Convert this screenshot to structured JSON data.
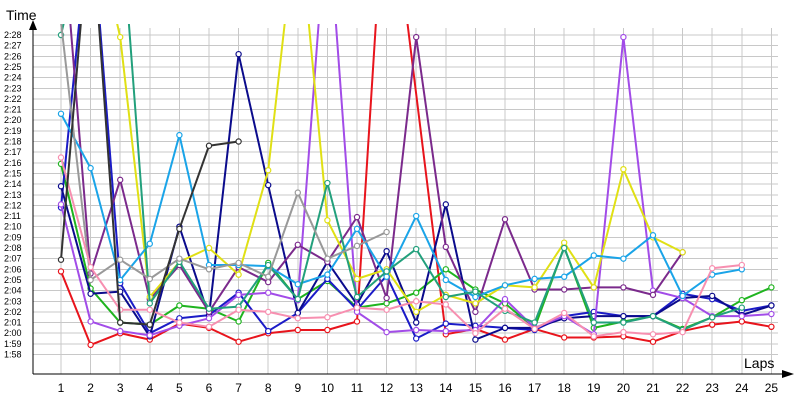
{
  "chart_data": {
    "type": "line",
    "ylabel": "Time",
    "xlabel": "Laps",
    "x": [
      1,
      2,
      3,
      4,
      5,
      6,
      7,
      8,
      9,
      10,
      11,
      12,
      13,
      14,
      15,
      16,
      17,
      18,
      19,
      20,
      21,
      22,
      23,
      24,
      25
    ],
    "ylim": [
      "1:57",
      "2:31"
    ],
    "y_tick_labels": [
      "1:58",
      "1:59",
      "2:00",
      "2:01",
      "2:02",
      "2:03",
      "2:04",
      "2:05",
      "2:06",
      "2:07",
      "2:08",
      "2:09",
      "2:10",
      "2:11",
      "2:12",
      "2:13",
      "2:14",
      "2:15",
      "2:16",
      "2:17",
      "2:18",
      "2:19",
      "2:20",
      "2:21",
      "2:22",
      "2:23",
      "2:24",
      "2:25",
      "2:26",
      "2:27",
      "2:28"
    ],
    "grid": true,
    "series": [
      {
        "color": "#e8141c",
        "values": [
          "2:05.8",
          "1:58.9",
          "2:00.0",
          "1:59.4",
          "2:00.9",
          "2:00.5",
          "1:59.2",
          "2:00.0",
          "2:00.3",
          "2:00.3",
          "2:01.1",
          "2:45",
          null,
          "1:59.9",
          "2:00.4",
          "1:59.4",
          "2:00.4",
          "1:59.6",
          "1:59.6",
          "1:59.7",
          "1:59.2",
          "2:00.2",
          "2:00.8",
          "2:01.1",
          "2:00.6"
        ]
      },
      {
        "color": "#1fb41f",
        "values": [
          "2:15.9",
          "2:04.2",
          "2:01.0",
          "2:00.8",
          "2:02.6",
          "2:02.3",
          "2:01.1",
          "2:06.6",
          "2:03.2",
          "2:04.9",
          "2:02.4",
          "2:02.8",
          "2:03.8",
          "2:06.0",
          "2:04.1",
          "2:02.8",
          "2:00.5",
          "2:08.1",
          "2:00.5",
          "2:01.1",
          "2:01.6",
          "2:00.4",
          "2:01.5",
          "2:03.1",
          "2:04.3"
        ]
      },
      {
        "color": "#1b1bc7",
        "values": [
          "2:11.8",
          "2:40",
          "2:04.7",
          "2:00.0",
          "2:01.4",
          "2:01.7",
          "2:03.8",
          "2:00.2",
          "2:01.9",
          "2:05.1",
          "2:02.2",
          "2:05.4",
          "1:59.5",
          "2:00.9",
          "2:00.7",
          "2:00.5",
          "2:00.3",
          "2:01.6",
          "2:02.0",
          "2:01.6",
          "2:01.6",
          "2:03.7",
          "2:03.2",
          "2:02.1",
          "2:02.6"
        ]
      },
      {
        "color": "#0b0b8c",
        "values": [
          "2:13.8",
          "2:03.7",
          "2:03.9",
          "1:59.7",
          "2:10.0",
          "2:01.6",
          "2:26.2",
          "2:13.9",
          "2:01.9",
          "2:06.7",
          "2:02.7",
          "2:07.7",
          "2:01.0",
          "2:12.1",
          "1:59.4",
          "2:00.5",
          "2:00.5",
          "2:01.4",
          "2:01.6",
          "2:01.6",
          "2:01.6",
          "2:03.3",
          "2:03.5",
          "2:01.7",
          "2:02.6"
        ]
      },
      {
        "color": "#a24ce8",
        "values": [
          "2:12.1",
          "2:01.1",
          "2:00.2",
          "1:59.8",
          "2:00.7",
          "2:01.4",
          "2:03.6",
          "2:03.8",
          "2:03.1",
          "2:40",
          "2:02.0",
          "2:00.1",
          "2:00.3",
          "2:00.2",
          "2:00.3",
          "2:03.2",
          "2:00.5",
          "2:01.6",
          "1:59.9",
          "2:27.8",
          "2:04.0",
          "2:03.3",
          "2:01.6",
          "2:01.6",
          "2:01.8"
        ]
      },
      {
        "color": "#7b2a8c",
        "values": [
          "2:40",
          "2:05.6",
          "2:14.4",
          "2:03.2",
          "2:06.4",
          "2:02.0",
          "2:06.2",
          "2:04.8",
          "2:08.3",
          "2:06.7",
          "2:10.9",
          "2:03.3",
          "2:27.8",
          "2:08.1",
          "2:02.0",
          "2:10.7",
          "2:04.1",
          "2:04.1",
          "2:04.3",
          "2:04.3",
          "2:03.6",
          "2:07.6",
          null,
          null,
          null
        ]
      },
      {
        "color": "#e0e014",
        "values": [
          "2:40",
          "2:40",
          "2:27.8",
          "2:03.4",
          "2:06.7",
          "2:08.0",
          "2:05.5",
          "2:15.3",
          "2:40",
          "2:10.6",
          "2:05.1",
          "2:06.0",
          "2:02.0",
          "2:03.6",
          "2:02.8",
          "2:04.5",
          "2:04.3",
          "2:08.5",
          "2:04.3",
          "2:15.4",
          "2:09.0",
          "2:07.6",
          null,
          null,
          null
        ]
      },
      {
        "color": "#1aa4e8",
        "values": [
          "2:20.6",
          "2:15.5",
          "2:05.0",
          "2:08.4",
          "2:18.6",
          "2:06.4",
          "2:06.4",
          "2:06.3",
          "2:04.6",
          "2:05.5",
          "2:09.8",
          "2:05.3",
          "2:11.0",
          "2:05.0",
          "2:03.4",
          "2:04.5",
          "2:05.1",
          "2:05.3",
          "2:07.3",
          "2:07.0",
          "2:09.2",
          "2:03.5",
          "2:05.5",
          "2:06.0",
          null
        ]
      },
      {
        "color": "#22a07c",
        "values": [
          "2:28.0",
          "2:40",
          "2:40",
          "2:02.8",
          "2:06.7",
          "2:02.3",
          "2:02.5",
          "2:06.4",
          "2:03.2",
          "2:14.1",
          "2:03.4",
          "2:05.8",
          "2:07.9",
          "2:03.4",
          "2:03.9",
          "2:02.1",
          "2:01.0",
          "2:08.0",
          "2:01.0",
          "2:01.0",
          "2:01.6",
          "2:00.3",
          "2:01.5",
          "2:02.4",
          null
        ]
      },
      {
        "color": "#999999",
        "values": [
          "2:29.2",
          "2:05.0",
          "2:06.9",
          "2:05.1",
          "2:07.0",
          "2:06.0",
          "2:06.6",
          "2:05.3",
          "2:13.2",
          "2:07.0",
          "2:08.2",
          "2:09.5",
          null,
          null,
          null,
          null,
          null,
          null,
          null,
          null,
          null,
          null,
          null,
          null,
          null
        ]
      },
      {
        "color": "#f78fb0",
        "values": [
          "2:16.5",
          "2:06.2",
          "2:02.2",
          "2:02.2",
          "2:01.0",
          "2:00.6",
          "2:02.2",
          "2:02.0",
          "2:01.4",
          "2:01.5",
          "2:02.4",
          "2:02.2",
          "2:03.0",
          "2:02.7",
          "2:00.0",
          "2:02.3",
          "2:00.4",
          "2:01.9",
          "1:59.7",
          "2:00.1",
          "1:59.9",
          "2:00.1",
          "2:06.1",
          "2:06.4",
          null
        ]
      },
      {
        "color": "#333333",
        "values": [
          "2:06.9",
          "2:40",
          "2:01.0",
          "2:00.8",
          "2:09.8",
          "2:17.6",
          "2:18.0",
          null,
          null,
          null,
          null,
          null,
          null,
          null,
          null,
          null,
          null,
          null,
          null,
          null,
          null,
          null,
          null,
          null,
          null
        ]
      }
    ]
  }
}
